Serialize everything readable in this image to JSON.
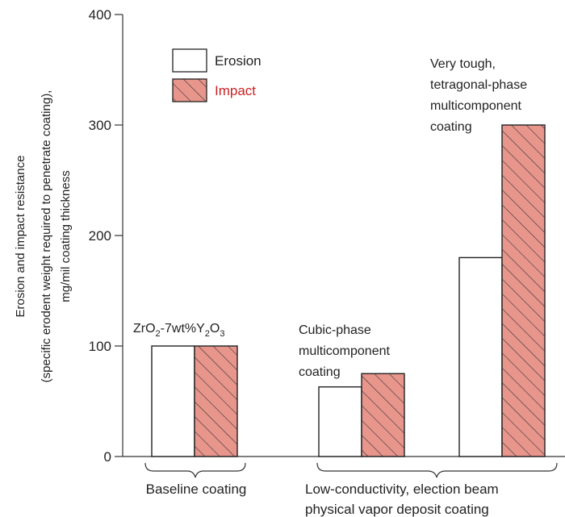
{
  "chart_data": {
    "type": "bar",
    "ylabel_lines": [
      "Erosion and impact resistance",
      "(specific erodent weight required to penetrate coating),",
      "mg/mil coating thickness"
    ],
    "ylim": [
      0,
      400
    ],
    "yticks": [
      0,
      100,
      200,
      300,
      400
    ],
    "grid": false,
    "legend_position": "top-left",
    "series": [
      {
        "name": "Erosion",
        "color": "#ffffff",
        "label_color": "#222222",
        "values": [
          100,
          63,
          180
        ]
      },
      {
        "name": "Impact",
        "color": "#e8968c",
        "label_color": "#cc2222",
        "hatch": true,
        "values": [
          100,
          75,
          300
        ]
      }
    ],
    "categories": [
      {
        "label_lines": [
          "ZrO",
          "2",
          "-7wt%Y",
          "2",
          "O",
          "3"
        ]
      },
      {
        "label_lines": [
          "Cubic-phase",
          "multicomponent",
          "coating"
        ]
      },
      {
        "label_lines": [
          "Very tough,",
          "tetragonal-phase",
          "multicomponent",
          "coating"
        ]
      }
    ],
    "groups": [
      {
        "label": "Baseline coating"
      },
      {
        "label_lines": [
          "Low-conductivity, election beam",
          "physical vapor deposit coating"
        ]
      }
    ]
  }
}
